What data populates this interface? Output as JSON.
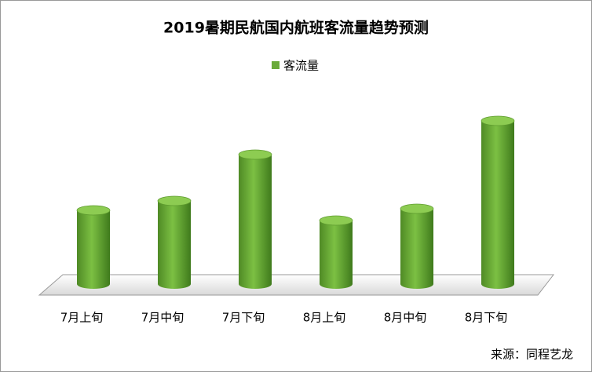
{
  "chart_data": {
    "type": "bar",
    "title": "2019暑期民航国内航班客流量趋势预测",
    "categories": [
      "7月上旬",
      "7月中旬",
      "7月下旬",
      "8月上旬",
      "8月中旬",
      "8月下旬"
    ],
    "series": [
      {
        "name": "客流量",
        "color": "#6aaa3a",
        "values": [
          94,
          106,
          165,
          81,
          96,
          208
        ]
      }
    ],
    "source": "来源：同程艺龙"
  }
}
